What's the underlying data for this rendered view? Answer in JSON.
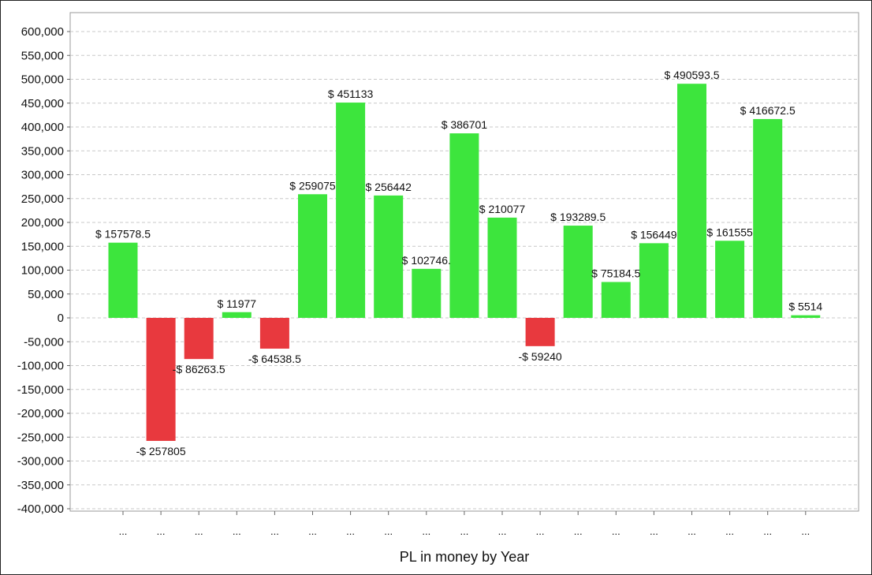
{
  "chart_data": {
    "type": "bar",
    "title": "",
    "xlabel": "PL in money by Year",
    "ylabel": "",
    "ylim": [
      -400000,
      600000
    ],
    "ytick_step": 50000,
    "grid": true,
    "categories": [
      "...",
      "...",
      "...",
      "...",
      "...",
      "...",
      "...",
      "...",
      "...",
      "...",
      "...",
      "...",
      "...",
      "...",
      "...",
      "...",
      "...",
      "...",
      "..."
    ],
    "values": [
      157578.5,
      -257805,
      -86263.5,
      11977,
      -64538.5,
      259075,
      451133,
      256442,
      102746,
      386701,
      210077,
      -59240,
      193289.5,
      75184.5,
      156449,
      490593.5,
      161555,
      416672.5,
      5514
    ],
    "data_labels": [
      "$ 157578.5",
      "-$ 257805",
      "-$ 86263.5",
      "$ 11977",
      "-$ 64538.5",
      "$ 259075",
      "$ 451133",
      "$ 256442",
      "$ 102746.",
      "$ 386701",
      "$ 210077",
      "-$ 59240",
      "$ 193289.5",
      "$ 75184.5",
      "$ 156449",
      "$ 490593.5",
      "$ 161555",
      "$ 416672.5",
      "$ 5514"
    ],
    "positive_color": "#3de53d",
    "negative_color": "#e8393e",
    "grid_color": "#c8c8c8"
  }
}
